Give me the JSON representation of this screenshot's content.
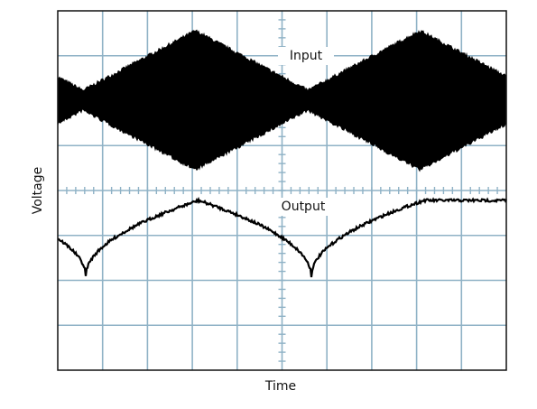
{
  "chart_data": {
    "type": "oscilloscope",
    "xlabel": "Time",
    "ylabel": "Voltage",
    "annotations": [
      "Input",
      "Output"
    ]
  }
}
